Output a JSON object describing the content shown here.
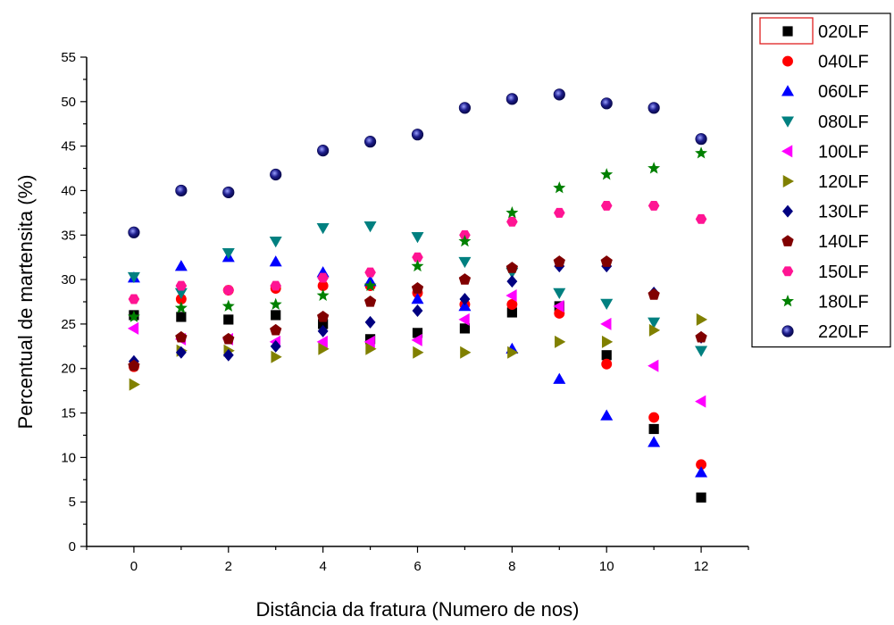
{
  "chart_data": {
    "type": "scatter",
    "title": "",
    "xlabel": "Distância da fratura (Numero de nos)",
    "ylabel": "Percentual de martensita (%)",
    "xlim": [
      -1,
      13
    ],
    "ylim": [
      0,
      55
    ],
    "x_ticks": [
      0,
      2,
      4,
      6,
      8,
      10,
      12
    ],
    "y_ticks": [
      0,
      5,
      10,
      15,
      20,
      25,
      30,
      35,
      40,
      45,
      50,
      55
    ],
    "grid": false,
    "legend_position": "top-right, outside plot",
    "x": [
      0,
      1,
      2,
      3,
      4,
      5,
      6,
      7,
      8,
      9,
      10,
      11,
      12
    ],
    "series": [
      {
        "name": "020LF",
        "marker": "square",
        "color": "#000000",
        "values": [
          26.0,
          25.8,
          25.5,
          26.0,
          25.0,
          23.3,
          24.0,
          24.5,
          26.3,
          27.0,
          21.5,
          13.2,
          5.5
        ]
      },
      {
        "name": "040LF",
        "marker": "circle",
        "color": "#ff0000",
        "values": [
          20.2,
          27.8,
          28.8,
          29.0,
          29.3,
          29.3,
          28.5,
          27.2,
          27.2,
          26.2,
          20.5,
          14.5,
          9.2
        ]
      },
      {
        "name": "060LF",
        "marker": "triangle-up",
        "color": "#0000ff",
        "values": [
          30.2,
          31.5,
          32.5,
          32.0,
          30.8,
          29.8,
          27.8,
          27.0,
          22.2,
          18.8,
          14.7,
          11.7,
          8.3
        ]
      },
      {
        "name": "080LF",
        "marker": "triangle-down",
        "color": "#008080",
        "values": [
          30.3,
          28.5,
          33.0,
          34.3,
          35.8,
          36.0,
          34.8,
          32.0,
          30.8,
          28.5,
          27.3,
          25.2,
          22.0
        ]
      },
      {
        "name": "100LF",
        "marker": "triangle-left",
        "color": "#ff00ff",
        "values": [
          24.5,
          23.3,
          23.3,
          23.0,
          23.0,
          23.0,
          23.2,
          25.5,
          28.2,
          27.0,
          25.0,
          20.3,
          16.3
        ]
      },
      {
        "name": "120LF",
        "marker": "triangle-right",
        "color": "#808000",
        "values": [
          18.2,
          22.0,
          22.0,
          21.3,
          22.2,
          22.2,
          21.8,
          21.8,
          21.8,
          23.0,
          23.0,
          24.3,
          25.5
        ]
      },
      {
        "name": "130LF",
        "marker": "diamond",
        "color": "#000080",
        "values": [
          20.8,
          21.8,
          21.5,
          22.5,
          24.2,
          25.2,
          26.5,
          27.8,
          29.8,
          31.5,
          31.5,
          28.5,
          23.5
        ]
      },
      {
        "name": "140LF",
        "marker": "pentagon",
        "color": "#800000",
        "values": [
          20.3,
          23.5,
          23.3,
          24.3,
          25.8,
          27.5,
          29.0,
          30.0,
          31.3,
          32.0,
          32.0,
          28.3,
          23.5
        ]
      },
      {
        "name": "150LF",
        "marker": "hexagon",
        "color": "#ff1493",
        "values": [
          27.8,
          29.3,
          28.8,
          29.3,
          30.2,
          30.8,
          32.5,
          35.0,
          36.5,
          37.5,
          38.3,
          38.3,
          36.8
        ]
      },
      {
        "name": "180LF",
        "marker": "star",
        "color": "#008000",
        "values": [
          25.8,
          26.8,
          27.0,
          27.2,
          28.2,
          29.3,
          31.5,
          34.3,
          37.5,
          40.3,
          41.8,
          42.5,
          44.2
        ]
      },
      {
        "name": "220LF",
        "marker": "sphere",
        "color": "#1e1e8c",
        "values": [
          35.3,
          40.0,
          39.8,
          41.8,
          44.5,
          45.5,
          46.3,
          49.3,
          50.3,
          50.8,
          49.8,
          49.3,
          45.8
        ]
      }
    ]
  }
}
